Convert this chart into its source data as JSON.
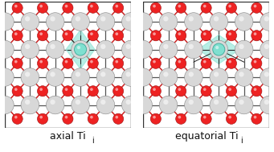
{
  "background_color": "#ffffff",
  "panel_border_color": "#333333",
  "label_left": "axial Ti",
  "label_right": "equatorial Ti",
  "subscript": "i",
  "label_fontsize": 9,
  "figure_width": 3.41,
  "figure_height": 1.89,
  "dpi": 100,
  "ti_color_light": "#d8d8d8",
  "ti_color_dark": "#888888",
  "o_color_light": "#ee2222",
  "o_color_dark": "#991111",
  "teal_color": "#7fe0d0",
  "teal_alpha": 0.55,
  "bond_red": "#cc2222",
  "bond_dark": "#555555",
  "r_ti": 0.072,
  "r_o": 0.042,
  "r_int": 0.048
}
